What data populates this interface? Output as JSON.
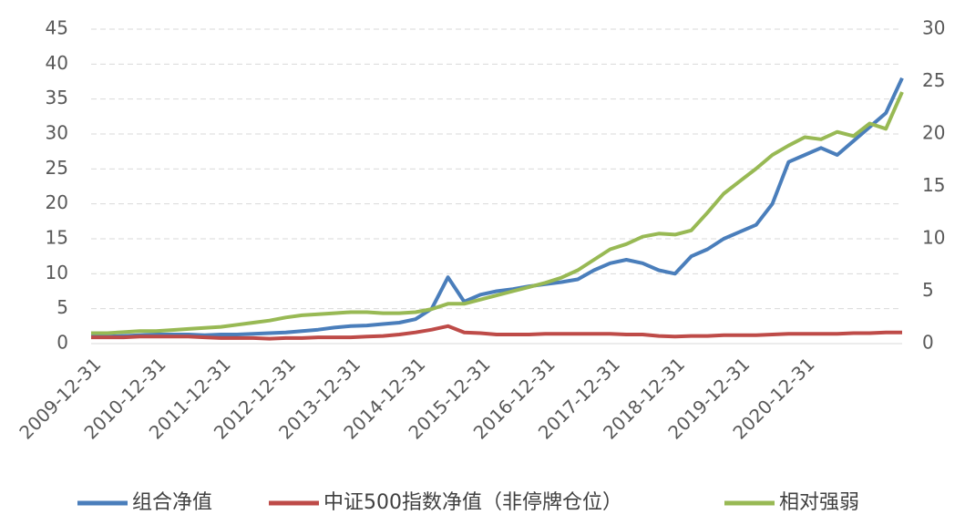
{
  "chart_data": {
    "type": "line",
    "categories": [
      "2009-12-31",
      null,
      null,
      null,
      "2010-12-31",
      null,
      null,
      null,
      "2011-12-31",
      null,
      null,
      null,
      "2012-12-31",
      null,
      null,
      null,
      "2013-12-31",
      null,
      null,
      null,
      "2014-12-31",
      null,
      null,
      null,
      "2015-12-31",
      null,
      null,
      null,
      "2016-12-31",
      null,
      null,
      null,
      "2017-12-31",
      null,
      null,
      null,
      "2018-12-31",
      null,
      null,
      null,
      "2019-12-31",
      null,
      null,
      null,
      "2020-12-31",
      null,
      null,
      null,
      null,
      null,
      null
    ],
    "series": [
      {
        "name": "组合净值",
        "color": "#4a7ebb",
        "values": [
          1.0,
          1.0,
          1.1,
          1.2,
          1.3,
          1.3,
          1.3,
          1.2,
          1.3,
          1.3,
          1.4,
          1.5,
          1.6,
          1.8,
          2.0,
          2.3,
          2.5,
          2.6,
          2.8,
          3.0,
          3.5,
          5.0,
          9.5,
          6.0,
          7.0,
          7.5,
          7.8,
          8.2,
          8.5,
          8.8,
          9.2,
          10.5,
          11.5,
          12.0,
          11.5,
          10.5,
          10.0,
          12.5,
          13.5,
          15.0,
          16.0,
          17.0,
          20.0,
          26.0,
          27.0,
          28.0,
          27.0,
          29.0,
          31.0,
          33.0,
          38.0
        ]
      },
      {
        "name": "中证500指数净值（非停牌仓位）",
        "color": "#be4b48",
        "values": [
          0.9,
          0.9,
          0.9,
          1.0,
          1.0,
          1.0,
          1.0,
          0.9,
          0.8,
          0.8,
          0.8,
          0.7,
          0.8,
          0.8,
          0.9,
          0.9,
          0.9,
          1.0,
          1.1,
          1.3,
          1.6,
          2.0,
          2.5,
          1.6,
          1.5,
          1.3,
          1.3,
          1.3,
          1.4,
          1.4,
          1.4,
          1.4,
          1.4,
          1.3,
          1.3,
          1.1,
          1.0,
          1.1,
          1.1,
          1.2,
          1.2,
          1.2,
          1.3,
          1.4,
          1.4,
          1.4,
          1.4,
          1.5,
          1.5,
          1.6,
          1.6
        ]
      },
      {
        "name": "相对强弱",
        "color": "#98b954",
        "axis": "y2",
        "values": [
          1.0,
          1.0,
          1.1,
          1.2,
          1.2,
          1.3,
          1.4,
          1.5,
          1.6,
          1.8,
          2.0,
          2.2,
          2.5,
          2.7,
          2.8,
          2.9,
          3.0,
          3.0,
          2.9,
          2.9,
          3.0,
          3.3,
          3.8,
          3.8,
          4.2,
          4.6,
          5.0,
          5.4,
          5.8,
          6.3,
          7.0,
          8.0,
          9.0,
          9.5,
          10.2,
          10.5,
          10.4,
          10.8,
          12.5,
          14.3,
          15.5,
          16.7,
          18.0,
          18.9,
          19.7,
          19.5,
          20.2,
          19.8,
          21.0,
          20.5,
          24.0
        ]
      }
    ],
    "ylim": [
      0,
      45
    ],
    "yticks": [
      0,
      5,
      10,
      15,
      20,
      25,
      30,
      35,
      40,
      45
    ],
    "y2lim": [
      0,
      30
    ],
    "y2ticks": [
      0,
      5,
      10,
      15,
      20,
      25,
      30
    ],
    "grid": true,
    "legend": "bottom"
  }
}
